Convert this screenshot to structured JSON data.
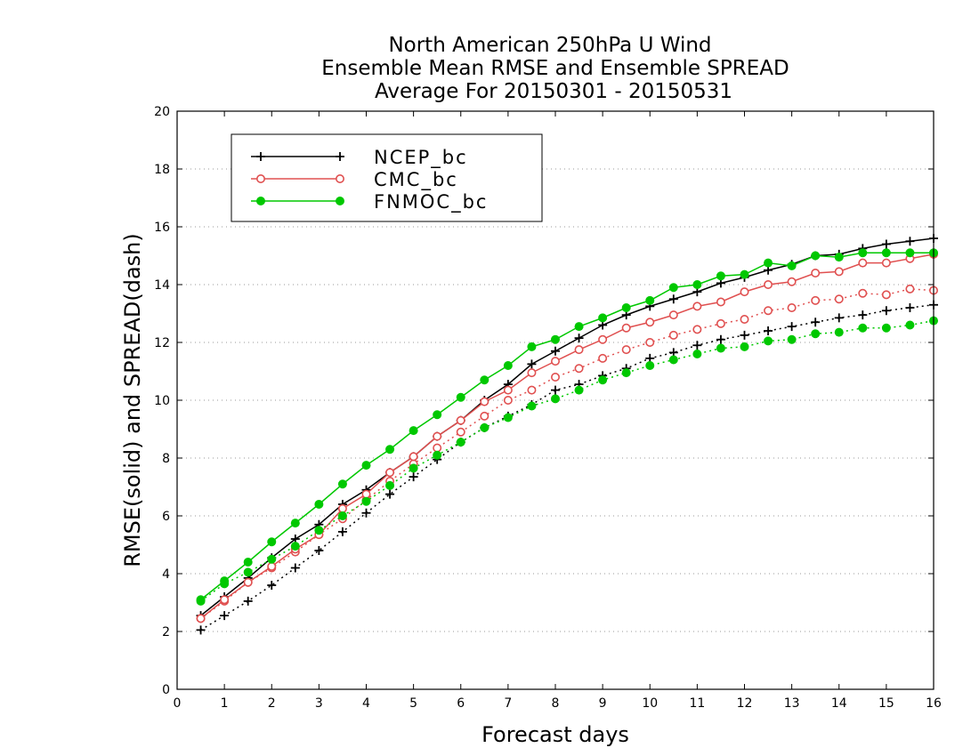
{
  "chart_data": {
    "type": "line",
    "title": [
      "North American 250hPa U Wind",
      "Ensemble Mean RMSE and Ensemble SPREAD",
      "Average For 20150301 - 20150531"
    ],
    "xlabel": "Forecast days",
    "ylabel": "RMSE(solid) and SPREAD(dash)",
    "xlim": [
      0,
      16
    ],
    "ylim": [
      0,
      20
    ],
    "xticks": [
      "0",
      "1",
      "2",
      "3",
      "4",
      "5",
      "6",
      "7",
      "8",
      "9",
      "10",
      "11",
      "12",
      "13",
      "14",
      "15",
      "16"
    ],
    "yticks": [
      "0",
      "2",
      "4",
      "6",
      "8",
      "10",
      "12",
      "14",
      "16",
      "18",
      "20"
    ],
    "grid": "horizontal dotted",
    "legend_position": "top-left",
    "x": [
      0.5,
      1,
      1.5,
      2,
      2.5,
      3,
      3.5,
      4,
      4.5,
      5,
      5.5,
      6,
      6.5,
      7,
      7.5,
      8,
      8.5,
      9,
      9.5,
      10,
      10.5,
      11,
      11.5,
      12,
      12.5,
      13,
      13.5,
      14,
      14.5,
      15,
      15.5,
      16
    ],
    "series": [
      {
        "name": "NCEP_bc",
        "color": "#000000",
        "marker": "plus",
        "rmse": [
          2.55,
          3.2,
          3.85,
          4.55,
          5.2,
          5.7,
          6.4,
          6.9,
          7.5,
          8.05,
          8.75,
          9.3,
          10.0,
          10.55,
          11.25,
          11.7,
          12.15,
          12.6,
          12.95,
          13.25,
          13.5,
          13.75,
          14.05,
          14.25,
          14.5,
          14.7,
          15.0,
          15.05,
          15.25,
          15.4,
          15.5,
          15.6
        ],
        "spread": [
          2.05,
          2.55,
          3.05,
          3.6,
          4.2,
          4.8,
          5.45,
          6.1,
          6.75,
          7.35,
          7.95,
          8.55,
          9.05,
          9.45,
          9.85,
          10.35,
          10.55,
          10.85,
          11.1,
          11.45,
          11.65,
          11.9,
          12.1,
          12.25,
          12.4,
          12.55,
          12.7,
          12.85,
          12.95,
          13.1,
          13.2,
          13.3
        ]
      },
      {
        "name": "CMC_bc",
        "color": "#e05050",
        "marker": "open-circle",
        "rmse": [
          2.45,
          3.1,
          3.7,
          4.25,
          4.85,
          5.35,
          6.25,
          6.75,
          7.5,
          8.05,
          8.75,
          9.3,
          9.95,
          10.35,
          10.95,
          11.35,
          11.75,
          12.1,
          12.5,
          12.7,
          12.95,
          13.25,
          13.4,
          13.75,
          14.0,
          14.1,
          14.4,
          14.45,
          14.75,
          14.75,
          14.9,
          15.05
        ],
        "spread": [
          2.45,
          3.05,
          3.7,
          4.2,
          4.75,
          5.35,
          5.9,
          6.55,
          7.2,
          7.8,
          8.35,
          8.9,
          9.45,
          10.0,
          10.35,
          10.8,
          11.1,
          11.45,
          11.75,
          12.0,
          12.25,
          12.45,
          12.65,
          12.8,
          13.1,
          13.2,
          13.45,
          13.5,
          13.7,
          13.65,
          13.85,
          13.8
        ]
      },
      {
        "name": "FNMOC_bc",
        "color": "#00c800",
        "marker": "filled-circle",
        "rmse": [
          3.1,
          3.75,
          4.4,
          5.1,
          5.75,
          6.4,
          7.1,
          7.75,
          8.3,
          8.95,
          9.5,
          10.1,
          10.7,
          11.2,
          11.85,
          12.1,
          12.55,
          12.85,
          13.2,
          13.45,
          13.9,
          14.0,
          14.3,
          14.35,
          14.75,
          14.65,
          15.0,
          14.95,
          15.1,
          15.1,
          15.1,
          15.1
        ],
        "spread": [
          3.05,
          3.65,
          4.05,
          4.5,
          4.95,
          5.5,
          6.0,
          6.5,
          7.05,
          7.65,
          8.1,
          8.55,
          9.05,
          9.4,
          9.8,
          10.05,
          10.35,
          10.7,
          10.95,
          11.2,
          11.4,
          11.6,
          11.8,
          11.85,
          12.05,
          12.1,
          12.3,
          12.35,
          12.5,
          12.5,
          12.6,
          12.75
        ]
      }
    ]
  }
}
